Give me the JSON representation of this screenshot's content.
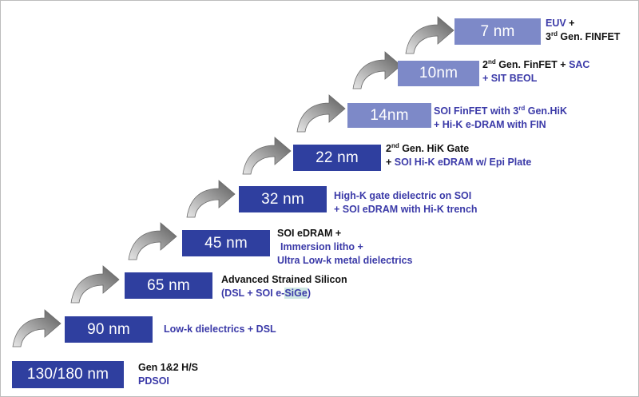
{
  "colors": {
    "node_dark": "#2f3f9f",
    "node_mid": "#4a5bb0",
    "node_light": "#7d89c8",
    "text_blue": "#3b3aa8",
    "text_black": "#111111",
    "highlight": "#cfe7e3"
  },
  "nodes": [
    {
      "id": "n130",
      "label": "130/180 nm"
    },
    {
      "id": "n90",
      "label": "90 nm"
    },
    {
      "id": "n65",
      "label": "65 nm"
    },
    {
      "id": "n45",
      "label": "45 nm"
    },
    {
      "id": "n32",
      "label": "32 nm"
    },
    {
      "id": "n22",
      "label": "22 nm"
    },
    {
      "id": "n14",
      "label": "14nm"
    },
    {
      "id": "n10",
      "label": "10nm"
    },
    {
      "id": "n7",
      "label": "7 nm"
    }
  ],
  "labels": {
    "l130": {
      "line1": "Gen 1&2 H/S",
      "line2": "PDSOI"
    },
    "l90": {
      "line1": "Low-k dielectrics + DSL"
    },
    "l65": {
      "line1": "Advanced Strained Silicon",
      "line2a": "(DSL + SOI e-",
      "line2b": "SiGe",
      "line2c": ")"
    },
    "l45": {
      "line1": "SOI eDRAM +",
      "line2": "Immersion litho +",
      "line3": "Ultra Low-k metal dielectrics"
    },
    "l32": {
      "line1": "High-K gate dielectric on SOI",
      "line2": "+ SOI  eDRAM with Hi-K trench"
    },
    "l22": {
      "line1a": "2",
      "line1sup": "nd",
      "line1b": " Gen. HiK Gate",
      "line2a": "+ ",
      "line2b": "SOI  Hi-K eDRAM w/ Epi Plate"
    },
    "l14": {
      "line1": "SOI FinFET with 3",
      "line1sup": "rd",
      "line1b": " Gen.HiK",
      "line2": "+ Hi-K e-DRAM with FIN"
    },
    "l10": {
      "line1a": "2",
      "line1sup": "nd",
      "line1b": " Gen. FinFET + ",
      "line1c": "SAC",
      "line2": "+ SIT BEOL"
    },
    "l7": {
      "line1a": "EUV",
      "line1b": " +",
      "line2a": "3",
      "line2sup": "rd",
      "line2b": " Gen. FINFET"
    }
  }
}
